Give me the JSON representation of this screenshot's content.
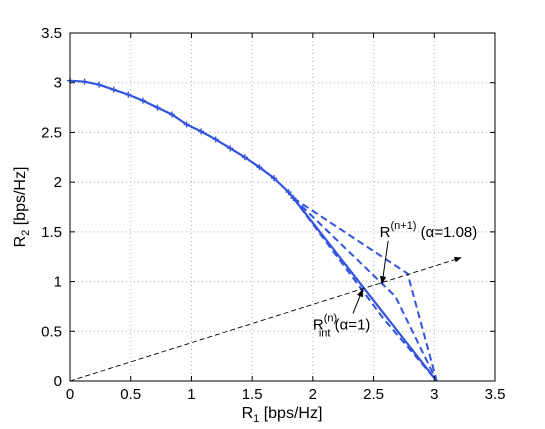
{
  "chart_data": {
    "type": "line",
    "title": "",
    "xlabel": {
      "main": "R",
      "sub": "1",
      "unit": " [bps/Hz]"
    },
    "ylabel": {
      "main": "R",
      "sub": "2",
      "unit": " [bps/Hz]"
    },
    "xlim": [
      0,
      3.5
    ],
    "ylim": [
      0,
      3.5
    ],
    "xticks": [
      "0",
      "0.5",
      "1",
      "1.5",
      "2",
      "2.5",
      "3",
      "3.5"
    ],
    "yticks": [
      "0",
      "0.5",
      "1",
      "1.5",
      "2",
      "2.5",
      "3",
      "3.5"
    ],
    "grid": true,
    "colors": {
      "series": "#3355dd",
      "reference": "#000000"
    },
    "series": [
      {
        "style": "solid-with-markers",
        "x": [
          0,
          0.12,
          0.24,
          0.36,
          0.48,
          0.6,
          0.72,
          0.84,
          0.96,
          1.08,
          1.2,
          1.32,
          1.44,
          1.56,
          1.68,
          1.8,
          1.84
        ],
        "y": [
          3.02,
          3.01,
          2.98,
          2.93,
          2.88,
          2.82,
          2.75,
          2.68,
          2.58,
          2.51,
          2.43,
          2.34,
          2.25,
          2.15,
          2.04,
          1.9,
          1.84
        ]
      },
      {
        "style": "solid",
        "x": [
          1.84,
          3.02
        ],
        "y": [
          1.84,
          0
        ]
      },
      {
        "style": "dashed",
        "x": [
          1.84,
          2.78,
          3.02
        ],
        "y": [
          1.84,
          1.08,
          0
        ]
      },
      {
        "style": "dashed",
        "x": [
          1.84,
          2.68,
          3.02
        ],
        "y": [
          1.84,
          0.85,
          0
        ]
      },
      {
        "style": "dashed",
        "x": [
          1.84,
          2.58,
          3.02
        ],
        "y": [
          1.84,
          0.63,
          0
        ]
      },
      {
        "style": "dashed-thin-arrow",
        "x": [
          0,
          3.22
        ],
        "y": [
          0,
          1.24
        ]
      }
    ],
    "annotations": [
      {
        "name": "r-next",
        "text": "R",
        "sup": "(n+1)",
        "suffix": "  (α=1.08)",
        "text_at": [
          2.55,
          1.45
        ],
        "arrow_from": [
          2.62,
          1.41
        ],
        "arrow_to": [
          2.57,
          0.98
        ]
      },
      {
        "name": "r-int",
        "text": "R",
        "sup": "(n)",
        "sub": "int",
        "suffix": " (α=1)",
        "text_at": [
          2.0,
          0.52
        ],
        "arrow_from": [
          2.33,
          0.68
        ],
        "arrow_to": [
          2.41,
          0.92
        ]
      }
    ]
  }
}
